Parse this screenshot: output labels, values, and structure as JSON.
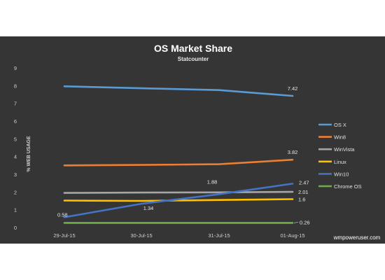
{
  "chart_data": {
    "type": "line",
    "title": "OS Market  Share",
    "subtitle": "Statcounter",
    "ylabel": "% WEB USAGE",
    "xlabel": "",
    "categories": [
      "29-Jul-15",
      "30-Jul-15",
      "31-Jul-15",
      "01-Aug-15"
    ],
    "ylim": [
      0,
      9
    ],
    "yticks": [
      0,
      1,
      2,
      3,
      4,
      5,
      6,
      7,
      8,
      9
    ],
    "grid": false,
    "legend": "right",
    "series": [
      {
        "name": "OS X",
        "color": "#5b9bd5",
        "values": [
          7.96,
          7.85,
          7.75,
          7.42
        ]
      },
      {
        "name": "Win8",
        "color": "#ed7d31",
        "values": [
          3.5,
          3.53,
          3.57,
          3.82
        ]
      },
      {
        "name": "WinVista",
        "color": "#a5a5a5",
        "values": [
          1.95,
          1.97,
          1.98,
          2.01
        ]
      },
      {
        "name": "Linux",
        "color": "#ffc000",
        "values": [
          1.52,
          1.5,
          1.55,
          1.6
        ]
      },
      {
        "name": "Win10",
        "color": "#4472c4",
        "values": [
          0.58,
          1.34,
          1.88,
          2.47
        ]
      },
      {
        "name": "Chrome OS",
        "color": "#70ad47",
        "values": [
          0.26,
          0.26,
          0.26,
          0.26
        ]
      }
    ],
    "data_labels": [
      {
        "series": "OS X",
        "index": 3,
        "text": "7.42"
      },
      {
        "series": "Win8",
        "index": 3,
        "text": "3.82"
      },
      {
        "series": "WinVista",
        "index": 3,
        "text": "2.01"
      },
      {
        "series": "Linux",
        "index": 3,
        "text": "1.6"
      },
      {
        "series": "Win10",
        "index": 0,
        "text": "0.58"
      },
      {
        "series": "Win10",
        "index": 1,
        "text": "1.34"
      },
      {
        "series": "Win10",
        "index": 2,
        "text": "1.88"
      },
      {
        "series": "Win10",
        "index": 3,
        "text": "2.47"
      },
      {
        "series": "Chrome OS",
        "index": 3,
        "text": "0.26"
      }
    ]
  },
  "source": "wmpoweruser.com"
}
